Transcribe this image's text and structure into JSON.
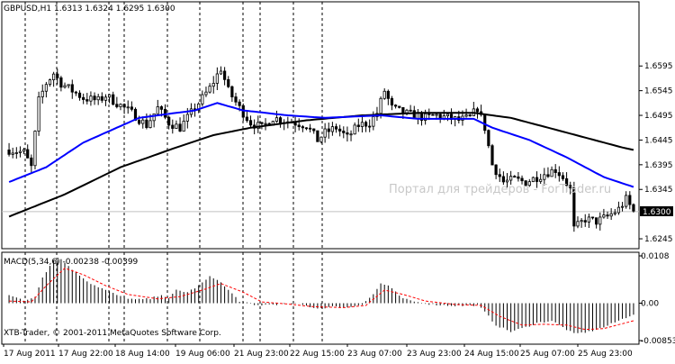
{
  "header": {
    "symbol_line": "GBPUSD,H1  1.6313 1.6324 1.6295 1.6300"
  },
  "watermark": "Портал для трейдеров - ForTrader.ru",
  "copyright": "XTB-Trader, © 2001-2011 MetaQuotes Software Corp.",
  "macd_label": "MACD(5,34,6) -0.00238 -0.00399",
  "price_badge": "1.6300",
  "colors": {
    "candle": "#000000",
    "ma_fast": "#0000ff",
    "ma_slow": "#000000",
    "macd_hist": "#000000",
    "macd_signal": "#ff0000",
    "grid": "#000000",
    "badge_bg": "#000000",
    "badge_text": "#ffffff"
  },
  "chart_data": [
    {
      "type": "candlestick",
      "title": "GBPUSD,H1",
      "ylim": [
        1.6225,
        1.6725
      ],
      "y_ticks": [
        "1.6595",
        "1.6545",
        "1.6495",
        "1.6445",
        "1.6395",
        "1.6345",
        "1.6245"
      ],
      "x_ticks": [
        "17 Aug 2011",
        "17 Aug 22:00",
        "18 Aug 14:00",
        "19 Aug 06:00",
        "21 Aug 23:00",
        "22 Aug 15:00",
        "23 Aug 07:00",
        "23 Aug 23:00",
        "24 Aug 15:00",
        "25 Aug 07:00",
        "25 Aug 23:00"
      ],
      "grid": "vertical dashed",
      "anchors": [
        [
          0,
          1.6425
        ],
        [
          4,
          1.642
        ],
        [
          6,
          1.639
        ],
        [
          8,
          1.6525
        ],
        [
          10,
          1.656
        ],
        [
          12,
          1.658
        ],
        [
          14,
          1.656
        ],
        [
          17,
          1.6545
        ],
        [
          20,
          1.653
        ],
        [
          24,
          1.6525
        ],
        [
          26,
          1.6535
        ],
        [
          30,
          1.6515
        ],
        [
          33,
          1.65
        ],
        [
          37,
          1.6475
        ],
        [
          40,
          1.651
        ],
        [
          43,
          1.648
        ],
        [
          46,
          1.647
        ],
        [
          50,
          1.651
        ],
        [
          54,
          1.655
        ],
        [
          57,
          1.659
        ],
        [
          59,
          1.6545
        ],
        [
          62,
          1.651
        ],
        [
          65,
          1.648
        ],
        [
          68,
          1.647
        ],
        [
          71,
          1.649
        ],
        [
          74,
          1.6485
        ],
        [
          77,
          1.648
        ],
        [
          80,
          1.6475
        ],
        [
          83,
          1.6445
        ],
        [
          85,
          1.646
        ],
        [
          88,
          1.647
        ],
        [
          91,
          1.645
        ],
        [
          94,
          1.6475
        ],
        [
          97,
          1.648
        ],
        [
          99,
          1.65
        ],
        [
          101,
          1.6545
        ],
        [
          103,
          1.651
        ],
        [
          106,
          1.65
        ],
        [
          109,
          1.6495
        ],
        [
          112,
          1.649
        ],
        [
          115,
          1.6495
        ],
        [
          118,
          1.649
        ],
        [
          121,
          1.6485
        ],
        [
          124,
          1.649
        ],
        [
          126,
          1.651
        ],
        [
          128,
          1.647
        ],
        [
          130,
          1.6395
        ],
        [
          133,
          1.636
        ],
        [
          136,
          1.6365
        ],
        [
          139,
          1.636
        ],
        [
          142,
          1.637
        ],
        [
          145,
          1.638
        ],
        [
          147,
          1.6385
        ],
        [
          149,
          1.637
        ],
        [
          151,
          1.6345
        ],
        [
          152,
          1.6265
        ],
        [
          155,
          1.6285
        ],
        [
          158,
          1.628
        ],
        [
          161,
          1.629
        ],
        [
          164,
          1.6305
        ],
        [
          166,
          1.6325
        ],
        [
          168,
          1.63
        ]
      ],
      "ma_fast": [
        [
          0,
          1.636
        ],
        [
          10,
          1.639
        ],
        [
          20,
          1.644
        ],
        [
          35,
          1.649
        ],
        [
          50,
          1.6505
        ],
        [
          56,
          1.652
        ],
        [
          63,
          1.6505
        ],
        [
          75,
          1.6495
        ],
        [
          85,
          1.649
        ],
        [
          100,
          1.6495
        ],
        [
          110,
          1.6488
        ],
        [
          125,
          1.6488
        ],
        [
          130,
          1.647
        ],
        [
          140,
          1.6445
        ],
        [
          150,
          1.641
        ],
        [
          160,
          1.637
        ],
        [
          168,
          1.635
        ]
      ],
      "ma_slow": [
        [
          0,
          1.629
        ],
        [
          15,
          1.6335
        ],
        [
          30,
          1.639
        ],
        [
          45,
          1.643
        ],
        [
          55,
          1.6455
        ],
        [
          65,
          1.647
        ],
        [
          80,
          1.6485
        ],
        [
          95,
          1.6495
        ],
        [
          110,
          1.65
        ],
        [
          125,
          1.65
        ],
        [
          135,
          1.649
        ],
        [
          145,
          1.647
        ],
        [
          155,
          1.645
        ],
        [
          165,
          1.643
        ],
        [
          168,
          1.6425
        ]
      ]
    },
    {
      "type": "bar",
      "title": "MACD(5,34,6)",
      "ylim": [
        -0.00853,
        0.0108
      ],
      "y_ticks": [
        "0.0108",
        "0.00",
        "-0.00853"
      ],
      "values_anchors": [
        [
          0,
          0.002
        ],
        [
          4,
          0.0005
        ],
        [
          7,
          0.0015
        ],
        [
          9,
          0.006
        ],
        [
          12,
          0.0098
        ],
        [
          14,
          0.01
        ],
        [
          18,
          0.007
        ],
        [
          22,
          0.0045
        ],
        [
          26,
          0.003
        ],
        [
          30,
          0.0015
        ],
        [
          34,
          0.0008
        ],
        [
          38,
          0.001
        ],
        [
          41,
          0.002
        ],
        [
          43,
          0.001
        ],
        [
          45,
          0.003
        ],
        [
          48,
          0.0025
        ],
        [
          51,
          0.004
        ],
        [
          54,
          0.006
        ],
        [
          56,
          0.0055
        ],
        [
          59,
          0.003
        ],
        [
          62,
          0.0005
        ],
        [
          66,
          -0.0005
        ],
        [
          70,
          -0.0003
        ],
        [
          74,
          -0.0002
        ],
        [
          78,
          -0.0002
        ],
        [
          83,
          -0.0012
        ],
        [
          87,
          -0.0008
        ],
        [
          91,
          -0.001
        ],
        [
          95,
          -0.0002
        ],
        [
          98,
          0.002
        ],
        [
          100,
          0.0045
        ],
        [
          102,
          0.004
        ],
        [
          106,
          0.001
        ],
        [
          110,
          0.0002
        ],
        [
          114,
          -0.0003
        ],
        [
          118,
          -0.0005
        ],
        [
          122,
          -0.0006
        ],
        [
          126,
          -0.0004
        ],
        [
          128,
          -0.002
        ],
        [
          131,
          -0.005
        ],
        [
          135,
          -0.0065
        ],
        [
          139,
          -0.0055
        ],
        [
          142,
          -0.0045
        ],
        [
          146,
          -0.004
        ],
        [
          149,
          -0.0055
        ],
        [
          152,
          -0.007
        ],
        [
          156,
          -0.0065
        ],
        [
          160,
          -0.0055
        ],
        [
          164,
          -0.004
        ],
        [
          168,
          -0.0025
        ]
      ],
      "signal_anchors": [
        [
          0,
          0.0005
        ],
        [
          6,
          0.0003
        ],
        [
          10,
          0.004
        ],
        [
          15,
          0.008
        ],
        [
          20,
          0.0065
        ],
        [
          26,
          0.004
        ],
        [
          32,
          0.002
        ],
        [
          40,
          0.001
        ],
        [
          46,
          0.0015
        ],
        [
          52,
          0.003
        ],
        [
          57,
          0.0045
        ],
        [
          63,
          0.0025
        ],
        [
          68,
          0.0003
        ],
        [
          75,
          -0.0002
        ],
        [
          82,
          -0.0008
        ],
        [
          90,
          -0.001
        ],
        [
          96,
          -0.0005
        ],
        [
          101,
          0.003
        ],
        [
          106,
          0.002
        ],
        [
          112,
          0.0005
        ],
        [
          120,
          -0.0003
        ],
        [
          127,
          -0.0005
        ],
        [
          132,
          -0.003
        ],
        [
          138,
          -0.005
        ],
        [
          144,
          -0.0048
        ],
        [
          150,
          -0.005
        ],
        [
          155,
          -0.006
        ],
        [
          160,
          -0.0058
        ],
        [
          168,
          -0.004
        ]
      ]
    }
  ]
}
